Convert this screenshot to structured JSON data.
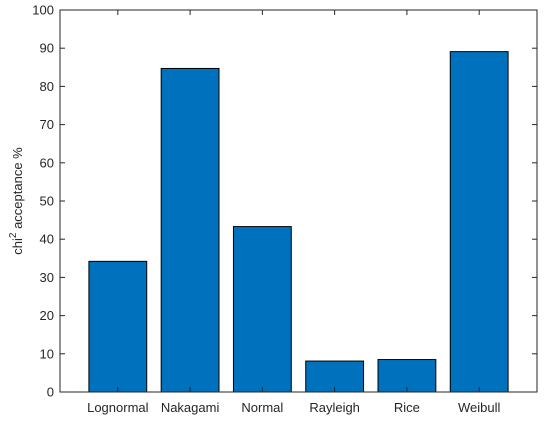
{
  "chart_data": {
    "type": "bar",
    "title": "",
    "xlabel": "",
    "ylabel_base": "chi",
    "ylabel_superscript": "2",
    "ylabel_rest": " acceptance %",
    "categories": [
      "Lognormal",
      "Nakagami",
      "Normal",
      "Rayleigh",
      "Rice",
      "Weibull"
    ],
    "values": [
      34.2,
      84.7,
      43.3,
      8.1,
      8.5,
      89.1
    ],
    "ylim": [
      0,
      100
    ],
    "yticks": [
      0,
      10,
      20,
      30,
      40,
      50,
      60,
      70,
      80,
      90,
      100
    ],
    "grid": false,
    "legend": "none",
    "bar_color": "#0072BD",
    "edge_color": "#000000"
  }
}
